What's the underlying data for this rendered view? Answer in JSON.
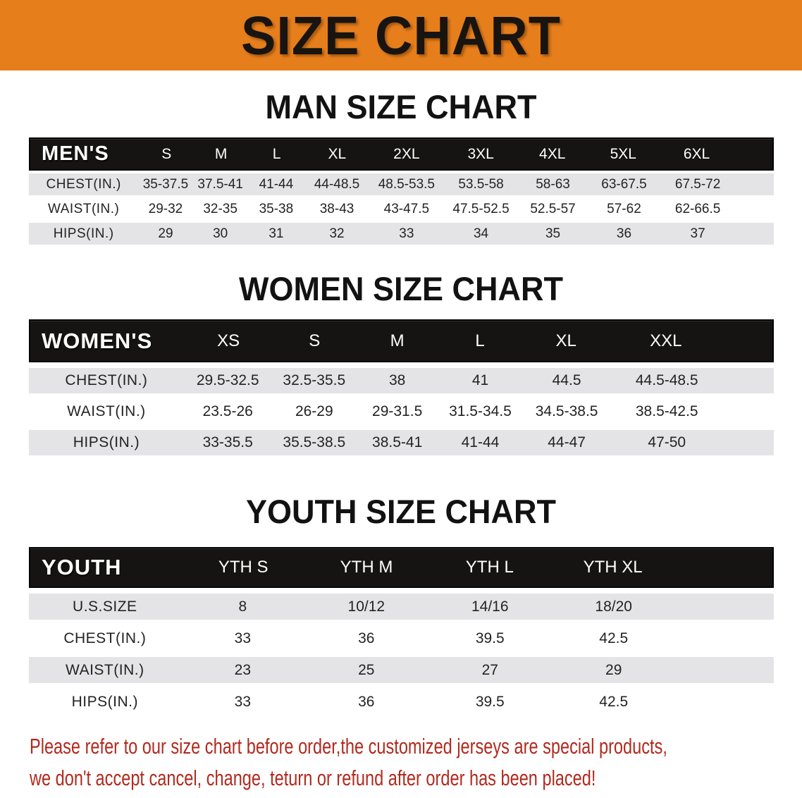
{
  "banner": {
    "title": "SIZE CHART"
  },
  "colors": {
    "banner_bg": "#E67E1C",
    "table_header_bg": "#151413",
    "table_header_text": "#FFFFFF",
    "row_stripe": "#E4E4E6",
    "body_text": "#232323",
    "note_text": "#B12A1E"
  },
  "sections": {
    "men": {
      "heading": "MAN SIZE CHART",
      "table": {
        "label": "MEN'S",
        "columns": [
          "S",
          "M",
          "L",
          "XL",
          "2XL",
          "3XL",
          "4XL",
          "5XL",
          "6XL"
        ],
        "rows": [
          {
            "label": "CHEST(IN.)",
            "values": [
              "35-37.5",
              "37.5-41",
              "41-44",
              "44-48.5",
              "48.5-53.5",
              "53.5-58",
              "58-63",
              "63-67.5",
              "67.5-72"
            ]
          },
          {
            "label": "WAIST(IN.)",
            "values": [
              "29-32",
              "32-35",
              "35-38",
              "38-43",
              "43-47.5",
              "47.5-52.5",
              "52.5-57",
              "57-62",
              "62-66.5"
            ]
          },
          {
            "label": "HIPS(IN.)",
            "values": [
              "29",
              "30",
              "31",
              "32",
              "33",
              "34",
              "35",
              "36",
              "37"
            ]
          }
        ]
      }
    },
    "women": {
      "heading": "WOMEN SIZE CHART",
      "table": {
        "label": "WOMEN'S",
        "columns": [
          "XS",
          "S",
          "M",
          "L",
          "XL",
          "XXL"
        ],
        "rows": [
          {
            "label": "CHEST(IN.)",
            "values": [
              "29.5-32.5",
              "32.5-35.5",
              "38",
              "41",
              "44.5",
              "44.5-48.5"
            ]
          },
          {
            "label": "WAIST(IN.)",
            "values": [
              "23.5-26",
              "26-29",
              "29-31.5",
              "31.5-34.5",
              "34.5-38.5",
              "38.5-42.5"
            ]
          },
          {
            "label": "HIPS(IN.)",
            "values": [
              "33-35.5",
              "35.5-38.5",
              "38.5-41",
              "41-44",
              "44-47",
              "47-50"
            ]
          }
        ]
      }
    },
    "youth": {
      "heading": "YOUTH SIZE CHART",
      "table": {
        "label": "YOUTH",
        "columns": [
          "YTH S",
          "YTH M",
          "YTH L",
          "YTH XL"
        ],
        "rows": [
          {
            "label": "U.S.SIZE",
            "values": [
              "8",
              "10/12",
              "14/16",
              "18/20"
            ]
          },
          {
            "label": "CHEST(IN.)",
            "values": [
              "33",
              "36",
              "39.5",
              "42.5"
            ]
          },
          {
            "label": "WAIST(IN.)",
            "values": [
              "23",
              "25",
              "27",
              "29"
            ]
          },
          {
            "label": "HIPS(IN.)",
            "values": [
              "33",
              "36",
              "39.5",
              "42.5"
            ]
          }
        ]
      }
    }
  },
  "footer": {
    "line1": "Please refer to our size chart before order,the customized jerseys are special products,",
    "line2": "we don't accept cancel, change, teturn or refund after order has been placed!"
  }
}
